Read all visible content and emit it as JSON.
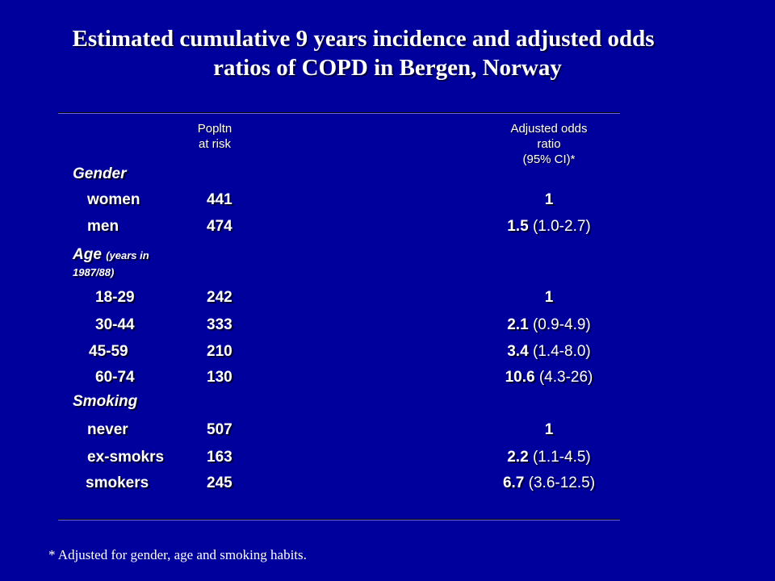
{
  "title": {
    "line1": "Estimated cumulative 9 years incidence and adjusted odds",
    "line2": "ratios of COPD in Bergen, Norway"
  },
  "header": {
    "pop_line1": "Popltn",
    "pop_line2": "at risk",
    "or_line1": "Adjusted odds",
    "or_line2": "ratio",
    "or_line3": "(95% CI)*"
  },
  "sections": {
    "gender": "Gender",
    "age": "Age",
    "age_sub": "(years in",
    "age_sub2": "1987/88)",
    "smoking": "Smoking"
  },
  "rows": [
    {
      "label": "women",
      "pop": "441",
      "or": "1",
      "ci": ""
    },
    {
      "label": "men",
      "pop": "474",
      "or": "1.5",
      "ci": "(1.0-2.7)"
    },
    {
      "label": "18-29",
      "pop": "242",
      "or": "1",
      "ci": ""
    },
    {
      "label": "30-44",
      "pop": "333",
      "or": "2.1",
      "ci": "(0.9-4.9)"
    },
    {
      "label": "45-59",
      "pop": "210",
      "or": "3.4",
      "ci": "(1.4-8.0)"
    },
    {
      "label": "60-74",
      "pop": "130",
      "or": "10.6",
      "ci": "(4.3-26)"
    },
    {
      "label": "never",
      "pop": "507",
      "or": "1",
      "ci": ""
    },
    {
      "label": "ex-smokrs",
      "pop": "163",
      "or": "2.2",
      "ci": "(1.1-4.5)"
    },
    {
      "label": "smokers",
      "pop": "245",
      "or": "6.7",
      "ci": "(3.6-12.5)"
    }
  ],
  "footnote": "* Adjusted for gender, age and smoking habits."
}
